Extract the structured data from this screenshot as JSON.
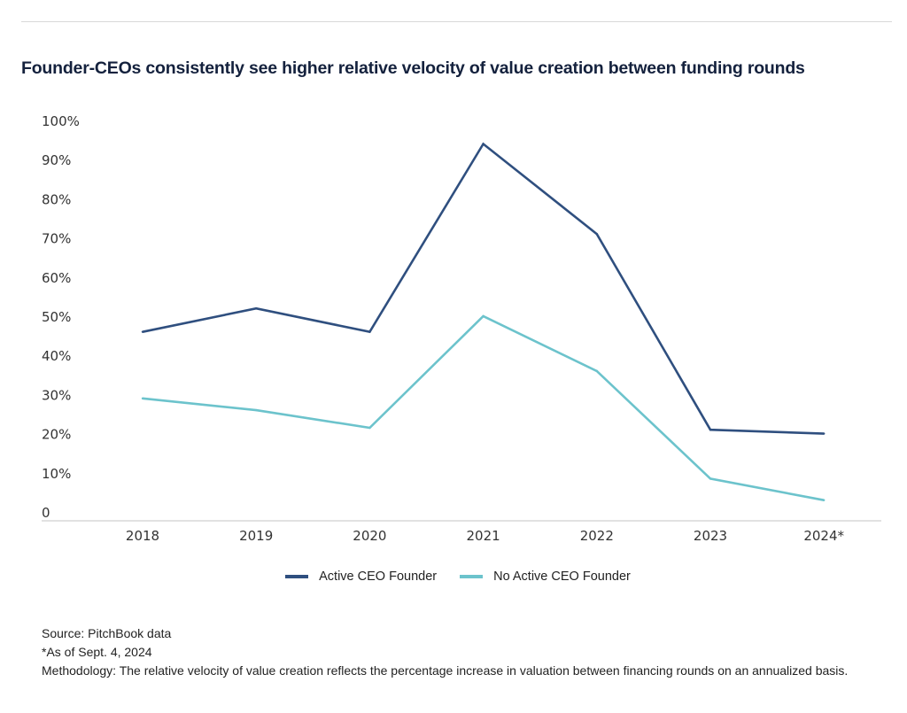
{
  "header": {
    "title": "Founder-CEOs consistently see higher relative velocity of value creation between funding rounds"
  },
  "colors": {
    "active": "#2f4f7f",
    "no_active": "#6cc3cc",
    "axis": "#d0d0d0",
    "title": "#14213d"
  },
  "chart_data": {
    "type": "line",
    "title": "Founder-CEOs consistently see higher relative velocity of value creation between funding rounds",
    "xlabel": "",
    "ylabel": "",
    "categories": [
      "2018",
      "2019",
      "2020",
      "2021",
      "2022",
      "2023",
      "2024*"
    ],
    "ylim": [
      0,
      100
    ],
    "yticks": [
      0,
      10,
      20,
      30,
      40,
      50,
      60,
      70,
      80,
      90,
      100
    ],
    "ytick_labels": [
      "0",
      "10%",
      "20%",
      "30%",
      "40%",
      "50%",
      "60%",
      "70%",
      "80%",
      "90%",
      "100%"
    ],
    "grid": false,
    "legend_position": "bottom",
    "series": [
      {
        "name": "Active CEO Founder",
        "color": "#2f4f7f",
        "values": [
          46,
          52,
          46,
          94,
          71,
          21,
          20
        ]
      },
      {
        "name": "No Active CEO Founder",
        "color": "#6cc3cc",
        "values": [
          29,
          26,
          21.5,
          50,
          36,
          8.5,
          3
        ]
      }
    ]
  },
  "legend": [
    {
      "label": "Active CEO Founder",
      "color": "#2f4f7f"
    },
    {
      "label": "No Active CEO Founder",
      "color": "#6cc3cc"
    }
  ],
  "footer": {
    "source": "Source: PitchBook data",
    "note": "*As of Sept. 4, 2024",
    "methodology": "Methodology: The relative velocity of value creation reflects the percentage increase in valuation between financing rounds on an annualized basis."
  }
}
